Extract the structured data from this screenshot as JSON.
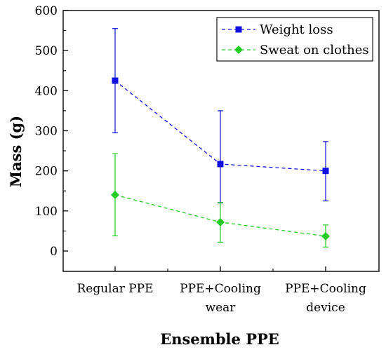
{
  "chart_data": {
    "type": "line",
    "title": "",
    "xlabel": "Ensemble PPE",
    "ylabel": "Mass (g)",
    "categories": [
      [
        "Regular PPE"
      ],
      [
        "PPE+Cooling",
        "wear"
      ],
      [
        "PPE+Cooling",
        "device"
      ]
    ],
    "ylim": [
      0,
      600
    ],
    "yticks": [
      0,
      100,
      200,
      300,
      400,
      500,
      600
    ],
    "series": [
      {
        "name": "Weight loss",
        "color": "#1010e0",
        "marker": "square",
        "values": [
          425,
          217,
          200
        ],
        "error_low": [
          295,
          120,
          125
        ],
        "error_high": [
          555,
          350,
          273
        ]
      },
      {
        "name": "Sweat on clothes",
        "color": "#22cc22",
        "marker": "diamond",
        "values": [
          140,
          72,
          37
        ],
        "error_low": [
          38,
          22,
          10
        ],
        "error_high": [
          243,
          121,
          65
        ]
      }
    ],
    "line_style": "dashed",
    "grid": false,
    "legend_position": "top-right"
  }
}
